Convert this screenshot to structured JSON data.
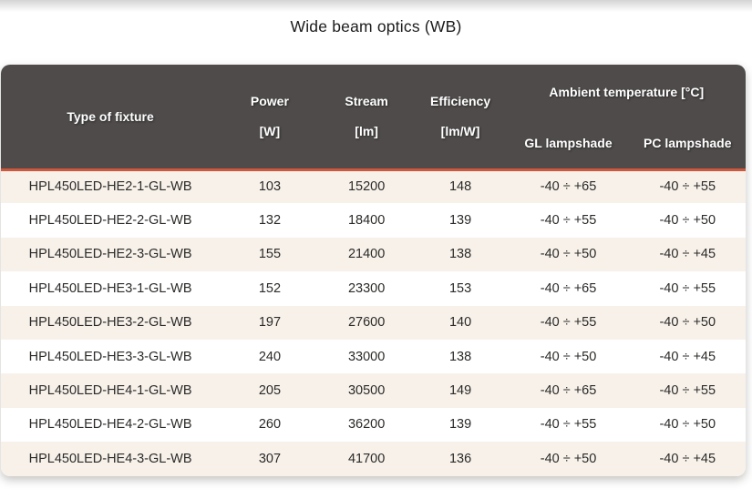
{
  "page": {
    "title": "Wide beam optics (WB)"
  },
  "table": {
    "header": {
      "fixture": "Type of fixture",
      "power_name": "Power",
      "power_unit": "[W]",
      "stream_name": "Stream",
      "stream_unit": "[lm]",
      "efficiency_name": "Efficiency",
      "efficiency_unit": "[lm/W]",
      "ambient_group": "Ambient temperature [°C]",
      "gl_sub": "GL lampshade",
      "pc_sub": "PC lampshade"
    },
    "rows": [
      {
        "fixture": "HPL450LED-HE2-1-GL-WB",
        "power": "103",
        "stream": "15200",
        "efficiency": "148",
        "gl_temp": "-40 ÷ +65",
        "pc_temp": "-40 ÷ +55"
      },
      {
        "fixture": "HPL450LED-HE2-2-GL-WB",
        "power": "132",
        "stream": "18400",
        "efficiency": "139",
        "gl_temp": "-40 ÷ +55",
        "pc_temp": "-40 ÷ +50"
      },
      {
        "fixture": "HPL450LED-HE2-3-GL-WB",
        "power": "155",
        "stream": "21400",
        "efficiency": "138",
        "gl_temp": "-40 ÷ +50",
        "pc_temp": "-40 ÷ +45"
      },
      {
        "fixture": "HPL450LED-HE3-1-GL-WB",
        "power": "152",
        "stream": "23300",
        "efficiency": "153",
        "gl_temp": "-40 ÷ +65",
        "pc_temp": "-40 ÷ +55"
      },
      {
        "fixture": "HPL450LED-HE3-2-GL-WB",
        "power": "197",
        "stream": "27600",
        "efficiency": "140",
        "gl_temp": "-40 ÷ +55",
        "pc_temp": "-40 ÷ +50"
      },
      {
        "fixture": "HPL450LED-HE3-3-GL-WB",
        "power": "240",
        "stream": "33000",
        "efficiency": "138",
        "gl_temp": "-40 ÷ +50",
        "pc_temp": "-40 ÷ +45"
      },
      {
        "fixture": "HPL450LED-HE4-1-GL-WB",
        "power": "205",
        "stream": "30500",
        "efficiency": "149",
        "gl_temp": "-40 ÷ +65",
        "pc_temp": "-40 ÷ +55"
      },
      {
        "fixture": "HPL450LED-HE4-2-GL-WB",
        "power": "260",
        "stream": "36200",
        "efficiency": "139",
        "gl_temp": "-40 ÷ +55",
        "pc_temp": "-40 ÷ +50"
      },
      {
        "fixture": "HPL450LED-HE4-3-GL-WB",
        "power": "307",
        "stream": "41700",
        "efficiency": "136",
        "gl_temp": "-40 ÷ +50",
        "pc_temp": "-40 ÷ +45"
      }
    ]
  },
  "colors": {
    "header_bg": "#4e4b4a",
    "header_text": "#ffffff",
    "accent_divider": "#cf573c",
    "row_alt_bg": "#f7f1ea",
    "row_bg": "#ffffff",
    "body_text": "#2b2a28",
    "title_text": "#1d1d1d"
  }
}
